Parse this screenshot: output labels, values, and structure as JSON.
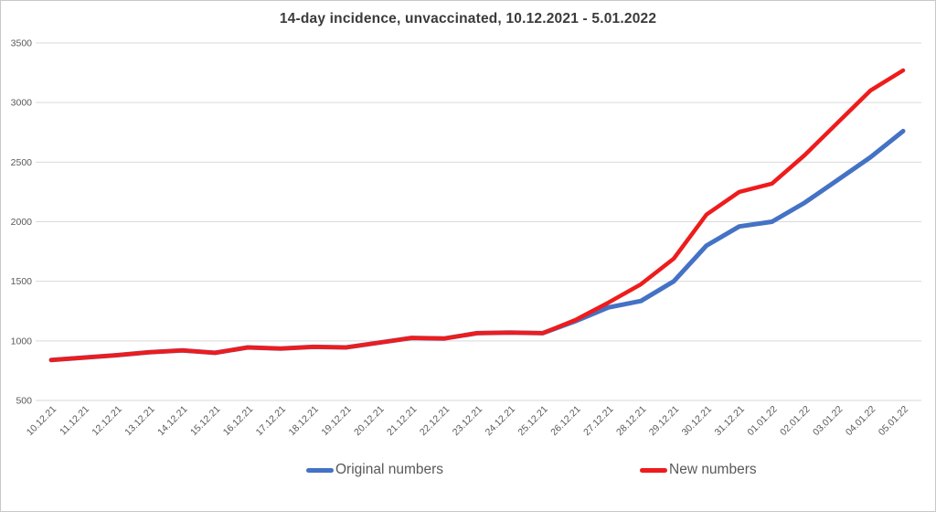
{
  "title": "14-day incidence, unvaccinated, 10.12.2021 - 5.01.2022",
  "colors": {
    "series_blue": "#4472c4",
    "series_red": "#ee1c1c",
    "gridline": "#d9d9d9",
    "tick_text": "#595959",
    "title_text": "#3b3b3b",
    "frame_border": "#c8c8c8"
  },
  "legend": {
    "items": [
      {
        "label": "Original numbers",
        "series": "original"
      },
      {
        "label": "New numbers",
        "series": "new"
      }
    ]
  },
  "chart_data": {
    "type": "line",
    "title": "14-day incidence, unvaccinated, 10.12.2021 - 5.01.2022",
    "x": [
      "10.12.21",
      "11.12.21",
      "12.12.21",
      "13.12.21",
      "14.12.21",
      "15.12.21",
      "16.12.21",
      "17.12.21",
      "18.12.21",
      "19.12.21",
      "20.12.21",
      "21.12.21",
      "22.12.21",
      "23.12.21",
      "24.12.21",
      "25.12.21",
      "26.12.21",
      "27.12.21",
      "28.12.21",
      "29.12.21",
      "30.12.21",
      "31.12.21",
      "01.01.22",
      "02.01.22",
      "03.01.22",
      "04.01.22",
      "05.01.22"
    ],
    "series": [
      {
        "name": "Original numbers",
        "color": "#4472c4",
        "values": [
          840,
          860,
          880,
          905,
          920,
          900,
          945,
          935,
          950,
          945,
          985,
          1025,
          1020,
          1065,
          1070,
          1065,
          1165,
          1280,
          1335,
          1500,
          1800,
          1960,
          2000,
          2160,
          2350,
          2540,
          2760
        ]
      },
      {
        "name": "New numbers",
        "color": "#ee1c1c",
        "values": [
          840,
          860,
          880,
          905,
          920,
          900,
          945,
          935,
          950,
          945,
          985,
          1025,
          1020,
          1065,
          1070,
          1065,
          1175,
          1320,
          1475,
          1690,
          2060,
          2250,
          2320,
          2560,
          2830,
          3100,
          3270
        ]
      }
    ],
    "xlabel": "",
    "ylabel": "",
    "ylim": [
      500,
      3500
    ],
    "yticks": [
      500,
      1000,
      1500,
      2000,
      2500,
      3000,
      3500
    ],
    "grid": true,
    "legend_position": "bottom"
  }
}
